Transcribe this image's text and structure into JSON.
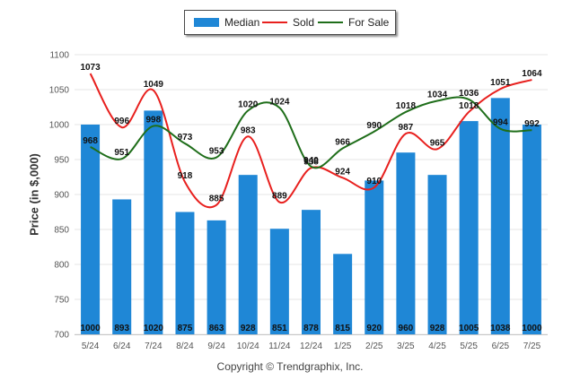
{
  "chart_data": {
    "type": "bar",
    "ylabel": "Price (in $,000)",
    "ylim": [
      700,
      1100
    ],
    "yticks": [
      700,
      750,
      800,
      850,
      900,
      950,
      1000,
      1050,
      1100
    ],
    "grid": true,
    "legend_position": "top-center",
    "categories": [
      "5/24",
      "6/24",
      "7/24",
      "8/24",
      "9/24",
      "10/24",
      "11/24",
      "12/24",
      "1/25",
      "2/25",
      "3/25",
      "4/25",
      "5/25",
      "6/25",
      "7/25"
    ],
    "series": [
      {
        "name": "Median",
        "kind": "bar",
        "color": "#1f87d6",
        "values": [
          1000,
          893,
          1020,
          875,
          863,
          928,
          851,
          878,
          815,
          920,
          960,
          928,
          1005,
          1038,
          1000
        ]
      },
      {
        "name": "Sold",
        "kind": "line",
        "color": "#e8201e",
        "values": [
          1073,
          996,
          1049,
          918,
          885,
          983,
          889,
          938,
          924,
          910,
          987,
          965,
          1018,
          1051,
          1064
        ]
      },
      {
        "name": "For Sale",
        "kind": "line",
        "color": "#1f6e1a",
        "values": [
          968,
          951,
          998,
          973,
          953,
          1020,
          1024,
          940,
          966,
          990,
          1018,
          1034,
          1036,
          994,
          992
        ]
      }
    ]
  },
  "footer": {
    "copyright": "Copyright © Trendgraphix, Inc."
  }
}
